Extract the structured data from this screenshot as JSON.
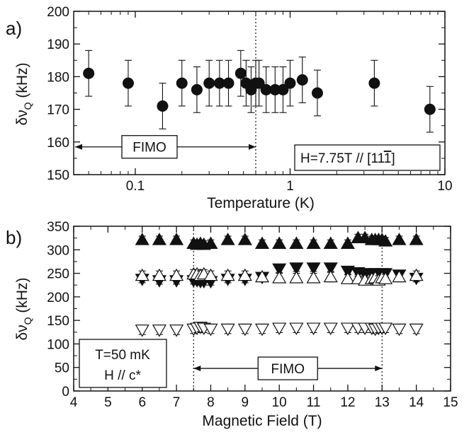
{
  "chart_data": [
    {
      "type": "scatter",
      "panel": "a)",
      "xlabel": "Temperature (K)",
      "ylabel_main": "δν",
      "ylabel_sub": "Q",
      "ylabel_unit": " (kHz)",
      "xscale": "log",
      "xlim": [
        0.04,
        10
      ],
      "ylim": [
        150,
        200
      ],
      "xtick_values": [
        0.1,
        1,
        10
      ],
      "xtick_labels": [
        "0.1",
        "1",
        "10"
      ],
      "ytick_values": [
        150,
        160,
        170,
        180,
        190,
        200
      ],
      "ytick_labels": [
        "150",
        "160",
        "170",
        "180",
        "190",
        "200"
      ],
      "series": [
        {
          "marker": "filled-circle",
          "x": [
            0.05,
            0.09,
            0.15,
            0.2,
            0.25,
            0.3,
            0.35,
            0.4,
            0.48,
            0.52,
            0.56,
            0.6,
            0.63,
            0.7,
            0.8,
            0.9,
            1.0,
            1.2,
            1.5,
            3.5,
            8.0
          ],
          "y": [
            181,
            178,
            171,
            178,
            176,
            178,
            178,
            178,
            181,
            178,
            176,
            178,
            178,
            176,
            176,
            176,
            178,
            179,
            175,
            178,
            170
          ],
          "err": [
            7,
            7,
            7,
            7,
            7,
            7,
            7,
            7,
            7,
            7,
            7,
            7,
            7,
            7,
            7,
            7,
            7,
            7,
            7,
            7,
            7
          ]
        }
      ],
      "dotted_lines_x": [
        0.6
      ],
      "range_label": "FIMO",
      "range": [
        0.04,
        0.6
      ],
      "range_y": 158.5,
      "annotation": "H=7.75T // [11",
      "annotation_bar": "1",
      "annotation_end": "]"
    },
    {
      "type": "scatter",
      "panel": "b)",
      "xlabel": "Magnetic Field (T)",
      "ylabel_main": "δν",
      "ylabel_sub": "Q",
      "ylabel_unit": " (kHz)",
      "xlim": [
        4,
        15
      ],
      "ylim": [
        0,
        350
      ],
      "xtick_values": [
        4,
        5,
        6,
        7,
        8,
        9,
        10,
        11,
        12,
        13,
        14,
        15
      ],
      "xtick_labels": [
        "4",
        "5",
        "6",
        "7",
        "8",
        "9",
        "10",
        "11",
        "12",
        "13",
        "14",
        "15"
      ],
      "ytick_values": [
        0,
        50,
        100,
        150,
        200,
        250,
        300,
        350
      ],
      "ytick_labels": [
        "0",
        "50",
        "100",
        "150",
        "200",
        "250",
        "300",
        "350"
      ],
      "series": [
        {
          "marker": "filled-triangle-up",
          "x": [
            6,
            6.5,
            7,
            7.5,
            7.6,
            7.7,
            7.8,
            8,
            8.5,
            9,
            9.5,
            10,
            10.5,
            11,
            11.5,
            12,
            12.3,
            12.5,
            12.7,
            12.8,
            12.9,
            13,
            13.1,
            13.5,
            14
          ],
          "y": [
            321,
            321,
            321,
            313,
            311,
            313,
            311,
            313,
            321,
            321,
            313,
            313,
            313,
            313,
            313,
            313,
            325,
            325,
            321,
            321,
            321,
            321,
            318,
            321,
            321
          ],
          "err": [
            8
          ]
        },
        {
          "marker": "filled-triangle-down",
          "x": [
            6,
            6.5,
            7,
            7.5,
            7.6,
            7.7,
            7.8,
            8,
            8.5,
            9,
            9.5,
            10,
            10.5,
            11,
            11.5,
            12,
            12.3,
            12.5,
            12.7,
            12.8,
            12.9,
            13,
            13.1,
            13.5,
            14
          ],
          "y": [
            238,
            235,
            235,
            235,
            235,
            233,
            233,
            233,
            238,
            238,
            242,
            260,
            262,
            262,
            262,
            255,
            252,
            250,
            250,
            250,
            248,
            250,
            250,
            247,
            240
          ],
          "err": [
            8
          ]
        },
        {
          "marker": "open-triangle-up",
          "x": [
            6,
            6.5,
            7,
            7.5,
            7.6,
            7.7,
            7.8,
            8,
            8.5,
            9,
            9.5,
            10,
            10.5,
            11,
            11.5,
            12,
            12.3,
            12.5,
            12.7,
            12.8,
            12.9,
            13,
            13.1,
            13.5,
            14
          ],
          "y": [
            245,
            245,
            245,
            248,
            248,
            245,
            248,
            245,
            245,
            245,
            242,
            240,
            240,
            240,
            242,
            238,
            238,
            235,
            238,
            240,
            235,
            240,
            238,
            242,
            245
          ],
          "err": [
            10
          ]
        },
        {
          "marker": "open-triangle-down",
          "x": [
            6,
            6.5,
            7,
            7.5,
            7.6,
            7.7,
            7.8,
            8,
            8.5,
            9,
            9.5,
            10,
            10.5,
            11,
            11.5,
            12,
            12.3,
            12.5,
            12.7,
            12.8,
            12.9,
            13,
            13.1,
            13.5,
            14
          ],
          "y": [
            130,
            130,
            130,
            132,
            134,
            136,
            134,
            132,
            132,
            132,
            132,
            134,
            134,
            134,
            134,
            134,
            134,
            134,
            134,
            132,
            134,
            134,
            134,
            132,
            132
          ],
          "err": [
            10
          ]
        }
      ],
      "dotted_lines_x": [
        7.5,
        13
      ],
      "range_label": "FIMO",
      "range": [
        7.5,
        13
      ],
      "range_y": 48,
      "annotation_line1": "T=50 mK",
      "annotation_line2": "H // c*"
    }
  ]
}
